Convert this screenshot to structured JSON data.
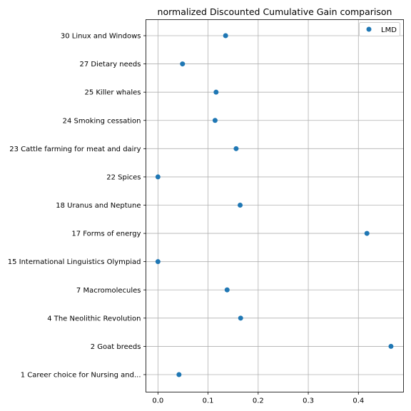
{
  "chart_data": {
    "type": "scatter",
    "title": "normalized Discounted Cumulative Gain comparison",
    "xlabel": "",
    "ylabel": "",
    "xlim": [
      -0.024,
      0.49
    ],
    "xticks": [
      0.0,
      0.1,
      0.2,
      0.3,
      0.4
    ],
    "xtick_labels": [
      "0.0",
      "0.1",
      "0.2",
      "0.3",
      "0.4"
    ],
    "grid": true,
    "legend_position": "top-right",
    "categories": [
      "30 Linux and Windows",
      "27 Dietary needs",
      "25 Killer whales",
      "24 Smoking cessation",
      "23 Cattle farming for meat and dairy",
      "22 Spices",
      "18 Uranus and Neptune",
      "17 Forms of energy",
      "15 International Linguistics Olympiad",
      "7 Macromolecules",
      "4 The Neolithic Revolution",
      "2 Goat breeds",
      "1 Career choice for Nursing and..."
    ],
    "series": [
      {
        "name": "LMD",
        "color": "#1f77b4",
        "values": [
          0.135,
          0.049,
          0.116,
          0.114,
          0.156,
          0.0,
          0.164,
          0.417,
          0.0,
          0.138,
          0.165,
          0.465,
          0.042
        ]
      }
    ]
  }
}
